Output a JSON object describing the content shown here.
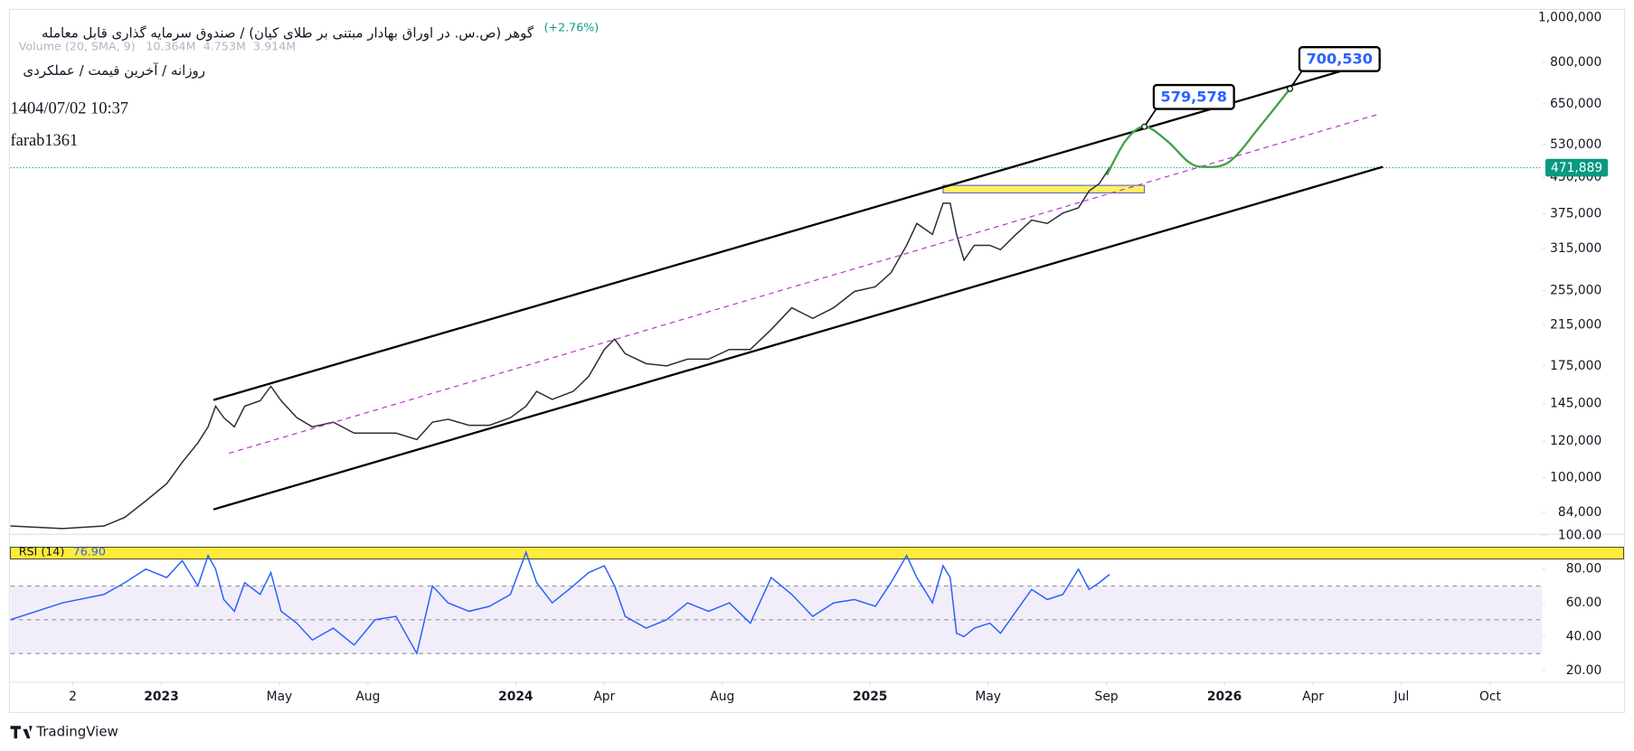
{
  "chart_data": [
    {
      "type": "line",
      "title": "گوهر (ص.س. در اوراق بهادار مبتنی بر طلای کیان) / صندوق سرمایه گذاری قابل معامله",
      "subtitle": "روزانه / آخرین قیمت / عملکردی",
      "change_label": "(+2.76%)",
      "volume_label": "Volume (20, SMA, 9)",
      "volume_values": [
        "10.364M",
        "4.753M",
        "3.914M"
      ],
      "date_label": "1404/07/02 10:37",
      "author": "farab1361",
      "log_scale": true,
      "xlim": [
        2022.574,
        2026.897
      ],
      "ylim": [
        75300,
        1037000
      ],
      "xticks": [
        {
          "value": 2022.75,
          "label": "2"
        },
        2023,
        {
          "value": 2023.333,
          "label": "May"
        },
        {
          "value": 2023.583,
          "label": "Aug"
        },
        2024,
        {
          "value": 2024.25,
          "label": "Apr"
        },
        {
          "value": 2024.583,
          "label": "Aug"
        },
        2025,
        {
          "value": 2025.333,
          "label": "May"
        },
        {
          "value": 2025.667,
          "label": "Sep"
        },
        2026,
        {
          "value": 2026.25,
          "label": "Apr"
        },
        {
          "value": 2026.5,
          "label": "Jul"
        },
        {
          "value": 2026.75,
          "label": "Oct"
        }
      ],
      "yticks": [
        {
          "value": 84000,
          "label": "84,000"
        },
        {
          "value": 100000,
          "label": "100,000"
        },
        {
          "value": 120000,
          "label": "120,000"
        },
        {
          "value": 145000,
          "label": "145,000"
        },
        {
          "value": 175000,
          "label": "175,000"
        },
        {
          "value": 215000,
          "label": "215,000"
        },
        {
          "value": 255000,
          "label": "255,000"
        },
        {
          "value": 315000,
          "label": "315,000"
        },
        {
          "value": 375000,
          "label": "375,000"
        },
        {
          "value": 450000,
          "label": "450,000"
        },
        {
          "value": 530000,
          "label": "530,000"
        },
        {
          "value": 650000,
          "label": "650,000"
        },
        {
          "value": 800000,
          "label": "800,000"
        },
        {
          "value": 1000000,
          "label": "1,000,000"
        }
      ],
      "x": [
        2022.574,
        2022.721,
        2022.838,
        2022.897,
        2022.956,
        2023.015,
        2023.059,
        2023.103,
        2023.132,
        2023.153,
        2023.176,
        2023.206,
        2023.235,
        2023.279,
        2023.309,
        2023.338,
        2023.382,
        2023.426,
        2023.485,
        2023.544,
        2023.603,
        2023.662,
        2023.721,
        2023.765,
        2023.809,
        2023.868,
        2023.926,
        2023.985,
        2024.029,
        2024.059,
        2024.103,
        2024.162,
        2024.206,
        2024.25,
        2024.279,
        2024.309,
        2024.368,
        2024.426,
        2024.485,
        2024.544,
        2024.603,
        2024.662,
        2024.721,
        2024.779,
        2024.838,
        2024.897,
        2024.956,
        2025.015,
        2025.059,
        2025.103,
        2025.132,
        2025.176,
        2025.206,
        2025.226,
        2025.244,
        2025.265,
        2025.294,
        2025.338,
        2025.368,
        2025.412,
        2025.456,
        2025.5,
        2025.544,
        2025.588,
        2025.618,
        2025.647,
        2025.676
      ],
      "series": [
        {
          "color": "#2a2e39",
          "values": [
            78500,
            77500,
            78500,
            82000,
            89000,
            97000,
            108000,
            119000,
            129000,
            143000,
            135000,
            129000,
            143000,
            147000,
            158000,
            147000,
            135000,
            129000,
            132000,
            125000,
            125000,
            125000,
            121000,
            132000,
            134000,
            130000,
            130000,
            135000,
            143000,
            154000,
            148000,
            154000,
            166000,
            190000,
            200000,
            186000,
            177000,
            175000,
            181000,
            181000,
            190000,
            190000,
            210000,
            234000,
            222000,
            234000,
            254000,
            260000,
            279000,
            320000,
            357000,
            338000,
            395000,
            395000,
            338000,
            297000,
            320000,
            320000,
            313000,
            338000,
            363000,
            357000,
            376000,
            386000,
            420000,
            436000,
            471889
          ]
        }
      ],
      "last_price": {
        "value": 471889,
        "label": "471,889",
        "color": "#089981"
      },
      "drawings": [
        {
          "style": "solid",
          "color": "#000000",
          "x": [
            2023.147,
            2026.441
          ],
          "y": [
            147500,
            811000
          ]
        },
        {
          "style": "solid",
          "color": "#000000",
          "x": [
            2023.147,
            2026.447
          ],
          "y": [
            85300,
            474000
          ]
        },
        {
          "style": "dashed",
          "color": "#c026d3",
          "x": [
            2023.191,
            2026.432
          ],
          "y": [
            113000,
            616000
          ]
        },
        {
          "style": "curve",
          "color": "#43a047",
          "x": [
            2025.668,
            2025.721,
            2025.774,
            2025.838,
            2025.897,
            2025.941,
            2026.015,
            2026.103,
            2026.185
          ],
          "y": [
            455000,
            540000,
            579578,
            540000,
            487000,
            474000,
            487000,
            584000,
            700530
          ]
        }
      ],
      "zone": {
        "color": "#ffeb3b",
        "x": [
          2025.206,
          2025.774
        ],
        "y": [
          416000,
          432000
        ]
      },
      "targets": [
        {
          "x": 2025.774,
          "value": 579578,
          "label": "579,578"
        },
        {
          "x": 2026.185,
          "value": 700530,
          "label": "700,530"
        }
      ]
    },
    {
      "type": "line",
      "title": "RSI (14)",
      "ylim": [
        13,
        100
      ],
      "yticks": [
        {
          "value": 100,
          "label": "100.00"
        },
        {
          "value": 80,
          "label": "80.00"
        },
        {
          "value": 60,
          "label": "60.00"
        },
        {
          "value": 40,
          "label": "40.00"
        },
        {
          "value": 20,
          "label": "20.00"
        }
      ],
      "levels": [
        70,
        50,
        30
      ],
      "band": [
        86,
        93
      ],
      "series": [
        {
          "color": "#2962ff",
          "values": [
            50,
            60,
            65,
            72,
            80,
            75,
            85,
            70,
            88,
            80,
            62,
            55,
            72,
            65,
            78,
            55,
            48,
            38,
            45,
            35,
            50,
            52,
            30,
            70,
            60,
            55,
            58,
            65,
            90,
            72,
            60,
            70,
            78,
            82,
            70,
            52,
            45,
            50,
            60,
            55,
            60,
            48,
            75,
            65,
            52,
            60,
            62,
            58,
            72,
            88,
            75,
            60,
            82,
            75,
            42,
            40,
            45,
            48,
            42,
            55,
            68,
            62,
            65,
            80,
            68,
            72,
            76.9
          ],
          "value_label": "76.90"
        }
      ]
    }
  ],
  "footer": {
    "brand": "TradingView"
  }
}
